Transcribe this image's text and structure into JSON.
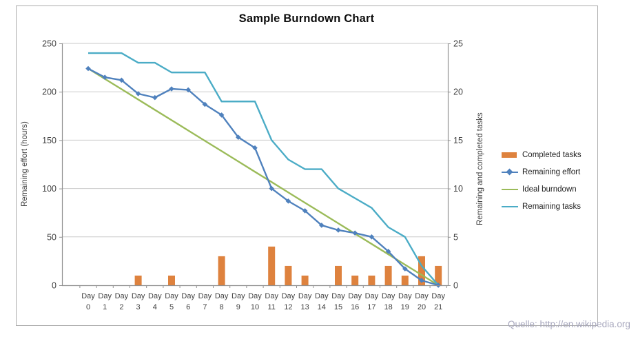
{
  "chart_data": {
    "type": "combo",
    "title": "Sample Burndown Chart",
    "source_note": "Quelle: http://en.wikipedia.org",
    "grid": true,
    "legend_position": "right",
    "categories": [
      "Day 0",
      "Day 1",
      "Day 2",
      "Day 3",
      "Day 4",
      "Day 5",
      "Day 6",
      "Day 7",
      "Day 8",
      "Day 9",
      "Day 10",
      "Day 11",
      "Day 12",
      "Day 13",
      "Day 14",
      "Day 15",
      "Day 16",
      "Day 17",
      "Day 18",
      "Day 19",
      "Day 20",
      "Day 21"
    ],
    "axes": {
      "left": {
        "label": "Remaining effort (hours)",
        "min": 0,
        "max": 250,
        "ticks": [
          0,
          50,
          100,
          150,
          200,
          250
        ]
      },
      "right": {
        "label": "Remaining and completed tasks",
        "min": 0,
        "max": 25,
        "ticks": [
          0,
          5,
          10,
          15,
          20,
          25
        ]
      }
    },
    "series": [
      {
        "name": "Completed tasks",
        "type": "bar",
        "axis": "right",
        "color": "#de823e",
        "values": [
          0,
          0,
          0,
          1,
          0,
          1,
          0,
          0,
          3,
          0,
          0,
          4,
          2,
          1,
          0,
          2,
          1,
          1,
          2,
          1,
          3,
          2
        ]
      },
      {
        "name": "Remaining effort",
        "type": "line",
        "marker": "diamond",
        "axis": "left",
        "color": "#4f81bd",
        "values": [
          224,
          215,
          212,
          198,
          194,
          203,
          202,
          187,
          176,
          153,
          142,
          100,
          87,
          77,
          62,
          57,
          54,
          50,
          35,
          17,
          5,
          0
        ]
      },
      {
        "name": "Ideal burndown",
        "type": "line",
        "axis": "left",
        "color": "#9bbb59",
        "values": [
          224,
          213.3,
          202.7,
          192,
          181.3,
          170.7,
          160,
          149.3,
          138.7,
          128,
          117.3,
          106.7,
          96,
          85.3,
          74.7,
          64,
          53.3,
          42.7,
          32,
          21.3,
          10.7,
          0
        ]
      },
      {
        "name": "Remaining tasks",
        "type": "line",
        "axis": "right",
        "color": "#4bacc6",
        "values": [
          24,
          24,
          24,
          23,
          23,
          22,
          22,
          22,
          19,
          19,
          19,
          15,
          13,
          12,
          12,
          10,
          9,
          8,
          6,
          5,
          2,
          0
        ]
      }
    ],
    "colors": {
      "grid": "#c9c9c9",
      "axis": "#909090",
      "frame": "#ababab",
      "tick_text": "#3f3f3f"
    }
  }
}
